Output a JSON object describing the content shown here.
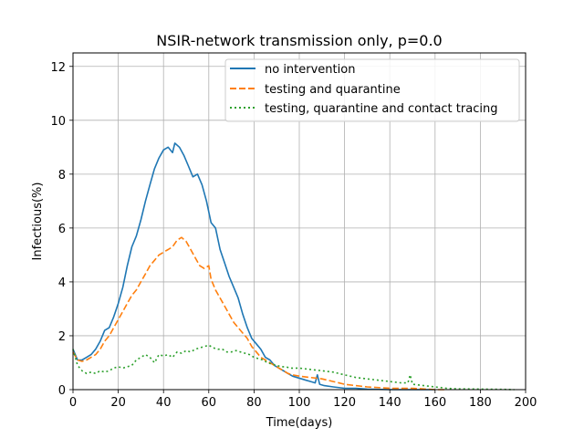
{
  "chart_data": {
    "type": "line",
    "title": "NSIR-network transmission only, p=0.0",
    "xlabel": "Time(days)",
    "ylabel": "Infectious(%)",
    "xlim": [
      0,
      200
    ],
    "ylim": [
      0,
      12.5
    ],
    "xticks": [
      0,
      20,
      40,
      60,
      80,
      100,
      120,
      140,
      160,
      180,
      200
    ],
    "yticks": [
      0,
      2,
      4,
      6,
      8,
      10,
      12
    ],
    "grid": true,
    "legend_position": "top-right",
    "series": [
      {
        "name": "no intervention",
        "color": "#1f77b4",
        "dash": "solid",
        "points": [
          [
            0,
            1.5
          ],
          [
            2,
            1.1
          ],
          [
            4,
            1.1
          ],
          [
            6,
            1.2
          ],
          [
            8,
            1.3
          ],
          [
            10,
            1.5
          ],
          [
            12,
            1.8
          ],
          [
            14,
            2.2
          ],
          [
            16,
            2.3
          ],
          [
            18,
            2.7
          ],
          [
            20,
            3.2
          ],
          [
            22,
            3.8
          ],
          [
            24,
            4.6
          ],
          [
            26,
            5.3
          ],
          [
            28,
            5.7
          ],
          [
            30,
            6.3
          ],
          [
            32,
            7.0
          ],
          [
            34,
            7.6
          ],
          [
            36,
            8.2
          ],
          [
            38,
            8.6
          ],
          [
            40,
            8.9
          ],
          [
            42,
            9.0
          ],
          [
            44,
            8.8
          ],
          [
            45,
            9.15
          ],
          [
            47,
            9.0
          ],
          [
            49,
            8.7
          ],
          [
            51,
            8.3
          ],
          [
            53,
            7.9
          ],
          [
            55,
            8.0
          ],
          [
            57,
            7.6
          ],
          [
            59,
            7.0
          ],
          [
            61,
            6.2
          ],
          [
            63,
            6.0
          ],
          [
            65,
            5.2
          ],
          [
            67,
            4.7
          ],
          [
            69,
            4.2
          ],
          [
            71,
            3.8
          ],
          [
            73,
            3.4
          ],
          [
            75,
            2.8
          ],
          [
            77,
            2.3
          ],
          [
            79,
            1.9
          ],
          [
            81,
            1.7
          ],
          [
            83,
            1.5
          ],
          [
            85,
            1.2
          ],
          [
            87,
            1.1
          ],
          [
            89,
            0.9
          ],
          [
            91,
            0.8
          ],
          [
            93,
            0.7
          ],
          [
            95,
            0.6
          ],
          [
            97,
            0.5
          ],
          [
            99,
            0.45
          ],
          [
            101,
            0.4
          ],
          [
            103,
            0.35
          ],
          [
            105,
            0.3
          ],
          [
            107,
            0.25
          ],
          [
            108,
            0.55
          ],
          [
            109,
            0.2
          ],
          [
            111,
            0.15
          ],
          [
            115,
            0.1
          ],
          [
            120,
            0.05
          ],
          [
            125,
            0.05
          ],
          [
            130,
            0.02
          ],
          [
            140,
            0.0
          ],
          [
            150,
            0.0
          ],
          [
            160,
            0.0
          ]
        ]
      },
      {
        "name": "testing and quarantine",
        "color": "#ff7f0e",
        "dash": "dashed",
        "points": [
          [
            0,
            1.4
          ],
          [
            2,
            1.1
          ],
          [
            4,
            1.05
          ],
          [
            6,
            1.1
          ],
          [
            8,
            1.2
          ],
          [
            10,
            1.3
          ],
          [
            12,
            1.5
          ],
          [
            14,
            1.8
          ],
          [
            16,
            2.0
          ],
          [
            18,
            2.3
          ],
          [
            20,
            2.6
          ],
          [
            22,
            2.9
          ],
          [
            24,
            3.2
          ],
          [
            26,
            3.5
          ],
          [
            28,
            3.7
          ],
          [
            30,
            4.0
          ],
          [
            32,
            4.3
          ],
          [
            34,
            4.6
          ],
          [
            36,
            4.8
          ],
          [
            38,
            5.0
          ],
          [
            40,
            5.1
          ],
          [
            42,
            5.2
          ],
          [
            44,
            5.3
          ],
          [
            46,
            5.55
          ],
          [
            48,
            5.65
          ],
          [
            50,
            5.5
          ],
          [
            52,
            5.2
          ],
          [
            54,
            4.9
          ],
          [
            56,
            4.6
          ],
          [
            58,
            4.5
          ],
          [
            60,
            4.6
          ],
          [
            61,
            4.1
          ],
          [
            63,
            3.7
          ],
          [
            65,
            3.4
          ],
          [
            67,
            3.1
          ],
          [
            69,
            2.8
          ],
          [
            71,
            2.5
          ],
          [
            73,
            2.3
          ],
          [
            75,
            2.1
          ],
          [
            77,
            1.9
          ],
          [
            79,
            1.6
          ],
          [
            81,
            1.4
          ],
          [
            83,
            1.2
          ],
          [
            85,
            1.1
          ],
          [
            87,
            1.0
          ],
          [
            89,
            0.9
          ],
          [
            91,
            0.8
          ],
          [
            93,
            0.7
          ],
          [
            95,
            0.6
          ],
          [
            97,
            0.55
          ],
          [
            100,
            0.5
          ],
          [
            105,
            0.45
          ],
          [
            110,
            0.4
          ],
          [
            115,
            0.3
          ],
          [
            120,
            0.2
          ],
          [
            125,
            0.15
          ],
          [
            130,
            0.1
          ],
          [
            140,
            0.05
          ],
          [
            150,
            0.05
          ],
          [
            160,
            0.0
          ],
          [
            165,
            0.0
          ]
        ]
      },
      {
        "name": "testing, quarantine and contact tracing",
        "color": "#2ca02c",
        "dash": "dotted",
        "points": [
          [
            0,
            1.5
          ],
          [
            2,
            0.9
          ],
          [
            4,
            0.7
          ],
          [
            6,
            0.6
          ],
          [
            8,
            0.65
          ],
          [
            10,
            0.6
          ],
          [
            12,
            0.7
          ],
          [
            14,
            0.65
          ],
          [
            16,
            0.7
          ],
          [
            18,
            0.8
          ],
          [
            20,
            0.85
          ],
          [
            22,
            0.8
          ],
          [
            24,
            0.85
          ],
          [
            26,
            0.9
          ],
          [
            28,
            1.1
          ],
          [
            30,
            1.2
          ],
          [
            32,
            1.3
          ],
          [
            34,
            1.2
          ],
          [
            36,
            1.0
          ],
          [
            38,
            1.3
          ],
          [
            40,
            1.25
          ],
          [
            42,
            1.3
          ],
          [
            44,
            1.2
          ],
          [
            46,
            1.4
          ],
          [
            48,
            1.35
          ],
          [
            50,
            1.45
          ],
          [
            52,
            1.4
          ],
          [
            54,
            1.5
          ],
          [
            56,
            1.55
          ],
          [
            58,
            1.6
          ],
          [
            60,
            1.65
          ],
          [
            62,
            1.55
          ],
          [
            64,
            1.5
          ],
          [
            66,
            1.5
          ],
          [
            68,
            1.4
          ],
          [
            70,
            1.4
          ],
          [
            72,
            1.45
          ],
          [
            74,
            1.4
          ],
          [
            76,
            1.35
          ],
          [
            78,
            1.3
          ],
          [
            80,
            1.2
          ],
          [
            82,
            1.15
          ],
          [
            84,
            1.1
          ],
          [
            86,
            1.0
          ],
          [
            88,
            0.95
          ],
          [
            90,
            0.9
          ],
          [
            92,
            0.85
          ],
          [
            94,
            0.85
          ],
          [
            96,
            0.8
          ],
          [
            98,
            0.8
          ],
          [
            100,
            0.8
          ],
          [
            105,
            0.75
          ],
          [
            110,
            0.7
          ],
          [
            115,
            0.65
          ],
          [
            120,
            0.55
          ],
          [
            125,
            0.45
          ],
          [
            130,
            0.4
          ],
          [
            135,
            0.35
          ],
          [
            140,
            0.3
          ],
          [
            145,
            0.25
          ],
          [
            148,
            0.25
          ],
          [
            149,
            0.55
          ],
          [
            150,
            0.2
          ],
          [
            155,
            0.15
          ],
          [
            160,
            0.1
          ],
          [
            165,
            0.05
          ],
          [
            170,
            0.03
          ],
          [
            180,
            0.02
          ],
          [
            190,
            0.01
          ],
          [
            195,
            0.0
          ]
        ]
      }
    ]
  }
}
